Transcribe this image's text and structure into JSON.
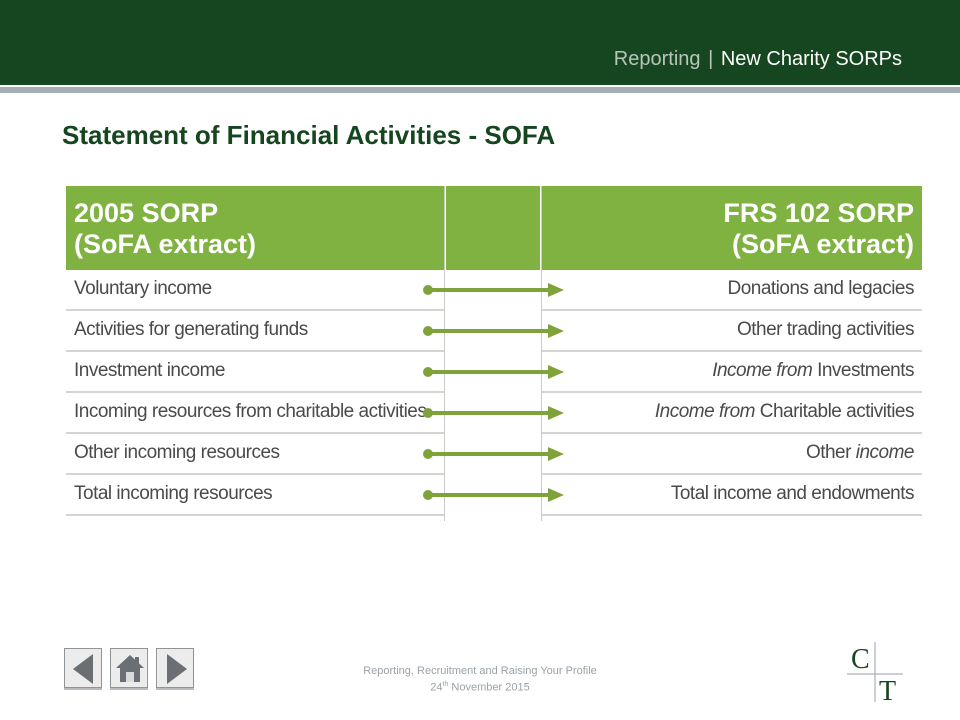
{
  "header": {
    "section": "Reporting",
    "separator": "|",
    "title": "New Charity SORPs"
  },
  "page_title": "Statement of Financial Activities - SOFA",
  "table": {
    "left_header": [
      "2005 SORP",
      "(SoFA extract)"
    ],
    "right_header": [
      "FRS 102 SORP",
      "(SoFA extract)"
    ],
    "rows": [
      {
        "left": "Voluntary income",
        "right_a": "",
        "right_a_style": "",
        "right_b": "Donations and legacies"
      },
      {
        "left": "Activities for generating funds",
        "right_a": "",
        "right_a_style": "",
        "right_b": "Other trading activities"
      },
      {
        "left": "Investment income",
        "right_a": "Income from ",
        "right_b": "Investments"
      },
      {
        "left": "Incoming resources from charitable activities",
        "right_a": "Income from ",
        "right_b": "Charitable activities"
      },
      {
        "left": "Other incoming resources",
        "right_a": "Other ",
        "right_b": "income"
      },
      {
        "left": "Total incoming resources",
        "right_a": "",
        "right_b": "Total income and endowments"
      }
    ],
    "colors": {
      "header_green": "#7fb241",
      "arrow_green": "#7fa33a"
    }
  },
  "footer": {
    "line1": "Reporting, Recruitment and Raising Your Profile",
    "line2_day": "24",
    "line2_suffix": "th",
    "line2_rest": " November 2015"
  },
  "nav": {
    "icons": [
      "previous-icon",
      "home-icon",
      "next-icon"
    ]
  },
  "logo": {
    "letters": [
      "C",
      "T"
    ]
  },
  "colors": {
    "brand_dark_green": "#15461f",
    "rule_grey": "#a7adb6"
  }
}
